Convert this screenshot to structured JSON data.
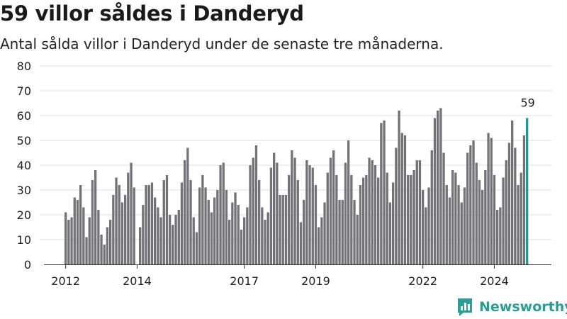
{
  "header": {
    "title": "59 villor såldes i Danderyd",
    "subtitle": "Antal sålda villor i Danderyd under de senaste tre månaderna."
  },
  "brand": {
    "name": "Newsworthy",
    "color": "#2a9d96"
  },
  "colors": {
    "bar": "#737277",
    "highlight": "#1a9a92",
    "grid": "#dddddd",
    "axis": "#333333",
    "text": "#222222"
  },
  "chart_data": {
    "type": "bar",
    "title": "59 villor såldes i Danderyd",
    "subtitle": "Antal sålda villor i Danderyd under de senaste tre månaderna.",
    "xlabel": "",
    "ylabel": "",
    "ylim": [
      0,
      80
    ],
    "yticks": [
      0,
      10,
      20,
      30,
      40,
      50,
      60,
      70,
      80
    ],
    "xticks": [
      "2012",
      "2014",
      "2017",
      "2019",
      "2022",
      "2024"
    ],
    "grid": true,
    "highlight_label": "59",
    "values": [
      21,
      18,
      19,
      27,
      26,
      32,
      23,
      11,
      19,
      34,
      38,
      22,
      12,
      8,
      15,
      18,
      28,
      35,
      32,
      25,
      28,
      37,
      41,
      31,
      0,
      15,
      24,
      32,
      32,
      33,
      27,
      23,
      19,
      34,
      36,
      20,
      16,
      20,
      22,
      33,
      42,
      47,
      34,
      19,
      13,
      31,
      36,
      31,
      26,
      21,
      27,
      30,
      40,
      41,
      30,
      18,
      25,
      29,
      24,
      14,
      19,
      23,
      40,
      43,
      48,
      34,
      23,
      18,
      21,
      39,
      45,
      41,
      28,
      28,
      28,
      36,
      46,
      43,
      34,
      17,
      26,
      42,
      40,
      39,
      32,
      15,
      19,
      25,
      37,
      43,
      46,
      36,
      26,
      26,
      41,
      50,
      36,
      26,
      20,
      32,
      35,
      36,
      43,
      42,
      40,
      35,
      57,
      58,
      37,
      25,
      33,
      47,
      62,
      53,
      52,
      36,
      36,
      38,
      42,
      42,
      30,
      23,
      31,
      46,
      59,
      62,
      63,
      45,
      32,
      27,
      38,
      37,
      32,
      25,
      31,
      45,
      48,
      50,
      41,
      34,
      30,
      38,
      53,
      51,
      36,
      22,
      23,
      35,
      42,
      49,
      58,
      47,
      32,
      37,
      52,
      59
    ]
  }
}
